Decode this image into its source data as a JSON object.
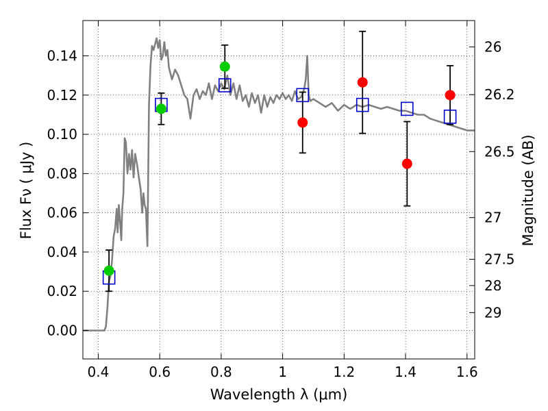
{
  "chart_data": {
    "type": "scatter",
    "xlabel": "Wavelength  λ (μm)",
    "ylabel": "Flux  Fν  ( μJy )",
    "y2label": "Magnitude (AB)",
    "xlim": [
      0.35,
      1.625
    ],
    "ylim": [
      -0.0145,
      0.158
    ],
    "grid": true,
    "x_ticks": [
      0.4,
      0.6,
      0.8,
      1.0,
      1.2,
      1.4,
      1.6
    ],
    "x_tick_labels": [
      "0.4",
      "0.6",
      "0.8",
      "1",
      "1.2",
      "1.4",
      "1.6"
    ],
    "y_ticks": [
      0.0,
      0.02,
      0.04,
      0.06,
      0.08,
      0.1,
      0.12,
      0.14
    ],
    "y_tick_labels": [
      "0.00",
      "0.02",
      "0.04",
      "0.06",
      "0.08",
      "0.10",
      "0.12",
      "0.14"
    ],
    "y2_ticks": [
      26,
      26.2,
      26.5,
      27,
      27.5,
      28,
      29
    ],
    "y2_tick_labels": [
      "26",
      "26.2",
      "26.5",
      "27",
      "27.5",
      "28",
      "29"
    ],
    "colors": {
      "model": "#808080",
      "optical": "#00cc00",
      "infrared": "#ff0000",
      "synthetic": "#0000cc",
      "errorbar": "#000000"
    },
    "series": [
      {
        "kind": "model_sed",
        "points": [
          [
            0.35,
            0.0
          ],
          [
            0.42,
            0.0
          ],
          [
            0.425,
            0.002
          ],
          [
            0.43,
            0.012
          ],
          [
            0.435,
            0.025
          ],
          [
            0.44,
            0.028
          ],
          [
            0.445,
            0.036
          ],
          [
            0.45,
            0.048
          ],
          [
            0.455,
            0.052
          ],
          [
            0.46,
            0.062
          ],
          [
            0.463,
            0.05
          ],
          [
            0.467,
            0.064
          ],
          [
            0.47,
            0.058
          ],
          [
            0.475,
            0.046
          ],
          [
            0.478,
            0.062
          ],
          [
            0.482,
            0.07
          ],
          [
            0.486,
            0.098
          ],
          [
            0.49,
            0.096
          ],
          [
            0.495,
            0.08
          ],
          [
            0.5,
            0.09
          ],
          [
            0.505,
            0.082
          ],
          [
            0.51,
            0.092
          ],
          [
            0.515,
            0.078
          ],
          [
            0.52,
            0.09
          ],
          [
            0.527,
            0.084
          ],
          [
            0.532,
            0.078
          ],
          [
            0.538,
            0.072
          ],
          [
            0.543,
            0.06
          ],
          [
            0.547,
            0.07
          ],
          [
            0.551,
            0.064
          ],
          [
            0.555,
            0.062
          ],
          [
            0.56,
            0.043
          ],
          [
            0.565,
            0.115
          ],
          [
            0.57,
            0.135
          ],
          [
            0.575,
            0.145
          ],
          [
            0.58,
            0.143
          ],
          [
            0.585,
            0.146
          ],
          [
            0.59,
            0.149
          ],
          [
            0.595,
            0.144
          ],
          [
            0.6,
            0.148
          ],
          [
            0.605,
            0.138
          ],
          [
            0.61,
            0.14
          ],
          [
            0.615,
            0.147
          ],
          [
            0.62,
            0.14
          ],
          [
            0.625,
            0.143
          ],
          [
            0.63,
            0.134
          ],
          [
            0.64,
            0.128
          ],
          [
            0.65,
            0.133
          ],
          [
            0.66,
            0.13
          ],
          [
            0.67,
            0.125
          ],
          [
            0.68,
            0.12
          ],
          [
            0.69,
            0.118
          ],
          [
            0.7,
            0.108
          ],
          [
            0.71,
            0.12
          ],
          [
            0.72,
            0.123
          ],
          [
            0.73,
            0.118
          ],
          [
            0.74,
            0.122
          ],
          [
            0.75,
            0.12
          ],
          [
            0.76,
            0.126
          ],
          [
            0.77,
            0.118
          ],
          [
            0.78,
            0.125
          ],
          [
            0.79,
            0.122
          ],
          [
            0.8,
            0.126
          ],
          [
            0.81,
            0.123
          ],
          [
            0.82,
            0.13
          ],
          [
            0.83,
            0.12
          ],
          [
            0.84,
            0.126
          ],
          [
            0.85,
            0.118
          ],
          [
            0.86,
            0.125
          ],
          [
            0.87,
            0.117
          ],
          [
            0.88,
            0.12
          ],
          [
            0.89,
            0.114
          ],
          [
            0.9,
            0.121
          ],
          [
            0.91,
            0.116
          ],
          [
            0.92,
            0.12
          ],
          [
            0.93,
            0.111
          ],
          [
            0.94,
            0.12
          ],
          [
            0.95,
            0.114
          ],
          [
            0.96,
            0.119
          ],
          [
            0.97,
            0.116
          ],
          [
            0.98,
            0.12
          ],
          [
            0.99,
            0.118
          ],
          [
            1.0,
            0.121
          ],
          [
            1.01,
            0.118
          ],
          [
            1.02,
            0.12
          ],
          [
            1.03,
            0.117
          ],
          [
            1.04,
            0.122
          ],
          [
            1.05,
            0.118
          ],
          [
            1.06,
            0.119
          ],
          [
            1.07,
            0.123
          ],
          [
            1.075,
            0.128
          ],
          [
            1.08,
            0.14
          ],
          [
            1.085,
            0.12
          ],
          [
            1.09,
            0.117
          ],
          [
            1.1,
            0.118
          ],
          [
            1.12,
            0.116
          ],
          [
            1.14,
            0.114
          ],
          [
            1.16,
            0.116
          ],
          [
            1.18,
            0.112
          ],
          [
            1.2,
            0.115
          ],
          [
            1.22,
            0.113
          ],
          [
            1.24,
            0.115
          ],
          [
            1.26,
            0.114
          ],
          [
            1.28,
            0.115
          ],
          [
            1.3,
            0.114
          ],
          [
            1.32,
            0.113
          ],
          [
            1.34,
            0.114
          ],
          [
            1.36,
            0.113
          ],
          [
            1.38,
            0.112
          ],
          [
            1.4,
            0.112
          ],
          [
            1.42,
            0.111
          ],
          [
            1.44,
            0.11
          ],
          [
            1.46,
            0.11
          ],
          [
            1.48,
            0.108
          ],
          [
            1.5,
            0.107
          ],
          [
            1.52,
            0.106
          ],
          [
            1.54,
            0.105
          ],
          [
            1.56,
            0.104
          ],
          [
            1.58,
            0.103
          ],
          [
            1.6,
            0.102
          ],
          [
            1.625,
            0.102
          ]
        ]
      },
      {
        "kind": "synthetic_photometry",
        "points": [
          [
            0.435,
            0.027
          ],
          [
            0.605,
            0.115
          ],
          [
            0.812,
            0.125
          ],
          [
            1.065,
            0.12
          ],
          [
            1.26,
            0.115
          ],
          [
            1.405,
            0.113
          ],
          [
            1.545,
            0.109
          ]
        ]
      },
      {
        "kind": "observed_optical",
        "points": [
          [
            0.435,
            0.0305,
            0.0105
          ],
          [
            0.605,
            0.113,
            0.008
          ],
          [
            0.812,
            0.1345,
            0.011
          ]
        ]
      },
      {
        "kind": "observed_infrared",
        "points": [
          [
            1.065,
            0.106,
            0.0155
          ],
          [
            1.26,
            0.1265,
            0.026
          ],
          [
            1.405,
            0.085,
            0.0215
          ],
          [
            1.545,
            0.12,
            0.015
          ]
        ]
      }
    ]
  }
}
